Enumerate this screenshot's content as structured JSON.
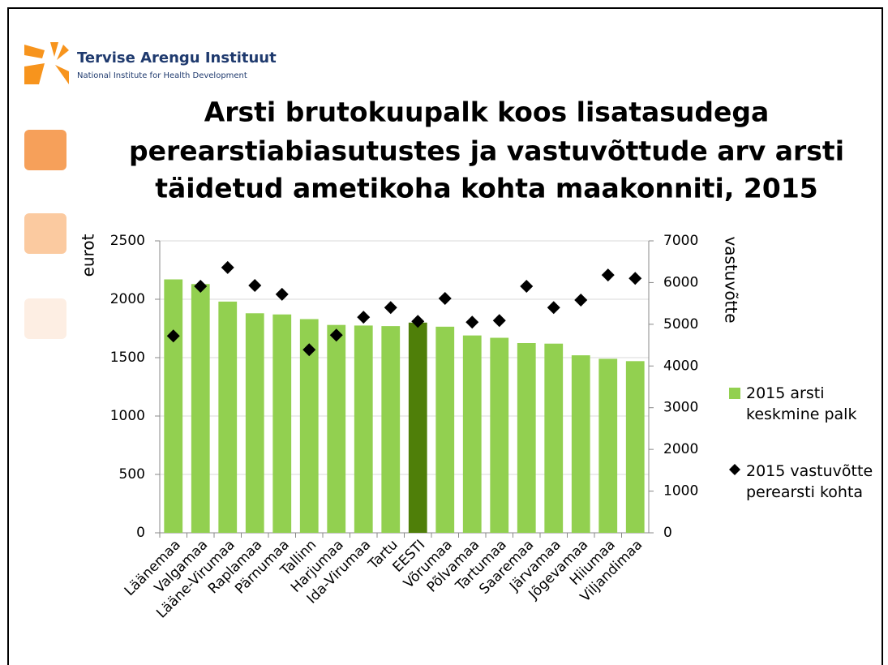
{
  "logo": {
    "name": "Tervise Arengu Instituut",
    "subtitle": "National Institute for Health Development"
  },
  "chart_data": {
    "type": "bar",
    "title": [
      "Arsti brutokuupalk koos lisatasudega",
      "perearstiabiasutustes ja vastuvõttude arv arsti",
      "täidetud ametikoha kohta maakonniti, 2015"
    ],
    "ylabel": "eurot",
    "y2label": "vastuvõtte",
    "categories": [
      "Läänemaa",
      "Valgamaa",
      "Lääne-Virumaa",
      "Raplamaa",
      "Pärnumaa",
      "Tallinn",
      "Harjumaa",
      "Ida-Virumaa",
      "Tartu",
      "EESTI",
      "Võrumaa",
      "Põlvamaa",
      "Tartumaa",
      "Saaremaa",
      "Järvamaa",
      "Jõgevamaa",
      "Hiiumaa",
      "Viljandimaa"
    ],
    "series": [
      {
        "name": "2015 arsti keskmine palk",
        "type": "bar",
        "color": "#92d050",
        "point_colors": [
          "#92d050",
          "#92d050",
          "#92d050",
          "#92d050",
          "#92d050",
          "#92d050",
          "#92d050",
          "#92d050",
          "#92d050",
          "#4f7f09",
          "#92d050",
          "#92d050",
          "#92d050",
          "#92d050",
          "#92d050",
          "#92d050",
          "#92d050",
          "#92d050"
        ],
        "values": [
          2170,
          2130,
          1980,
          1880,
          1870,
          1830,
          1780,
          1775,
          1770,
          1800,
          1765,
          1690,
          1670,
          1625,
          1620,
          1520,
          1490,
          1470
        ]
      },
      {
        "name": "2015 vastuvõtte perearsti kohta",
        "type": "scatter",
        "axis": "y2",
        "color": "#000000",
        "values": [
          4720,
          5910,
          6360,
          5930,
          5720,
          4390,
          4740,
          5170,
          5400,
          5070,
          5620,
          5050,
          5090,
          5910,
          5400,
          5580,
          6180,
          6100
        ]
      }
    ],
    "ylim": [
      0,
      2500
    ],
    "yticks": [
      0,
      500,
      1000,
      1500,
      2000,
      2500
    ],
    "y2lim": [
      0,
      7000
    ],
    "y2ticks": [
      0,
      1000,
      2000,
      3000,
      4000,
      5000,
      6000,
      7000
    ],
    "grid": true,
    "legend": "right"
  }
}
